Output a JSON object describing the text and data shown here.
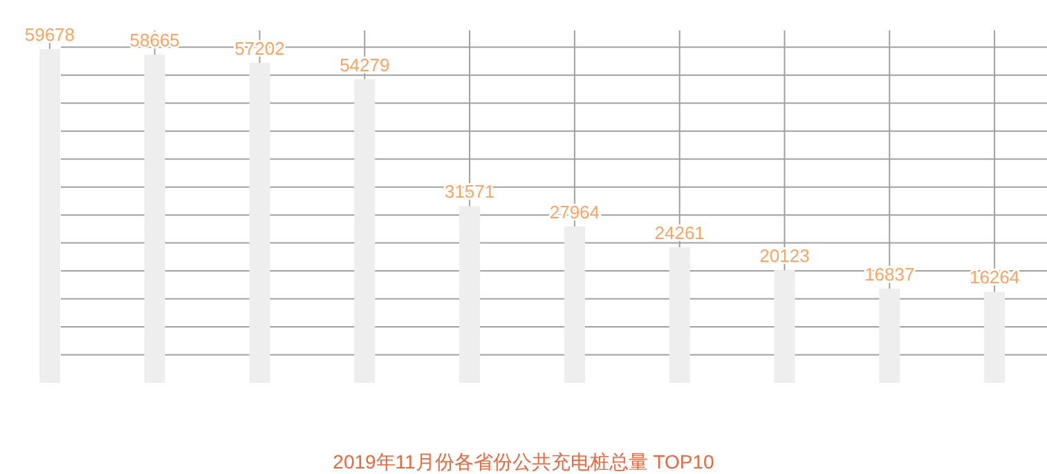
{
  "chart_data": {
    "type": "bar",
    "title": "2019年11月份各省份公共充电桩总量 TOP10",
    "categories": [
      null,
      null,
      null,
      null,
      null,
      null,
      null,
      null,
      null,
      null
    ],
    "values": [
      59678,
      58665,
      57202,
      54279,
      31571,
      27964,
      24261,
      20123,
      16837,
      16264
    ],
    "color": "#eeeeee",
    "data_labels": true,
    "grid": true
  }
}
